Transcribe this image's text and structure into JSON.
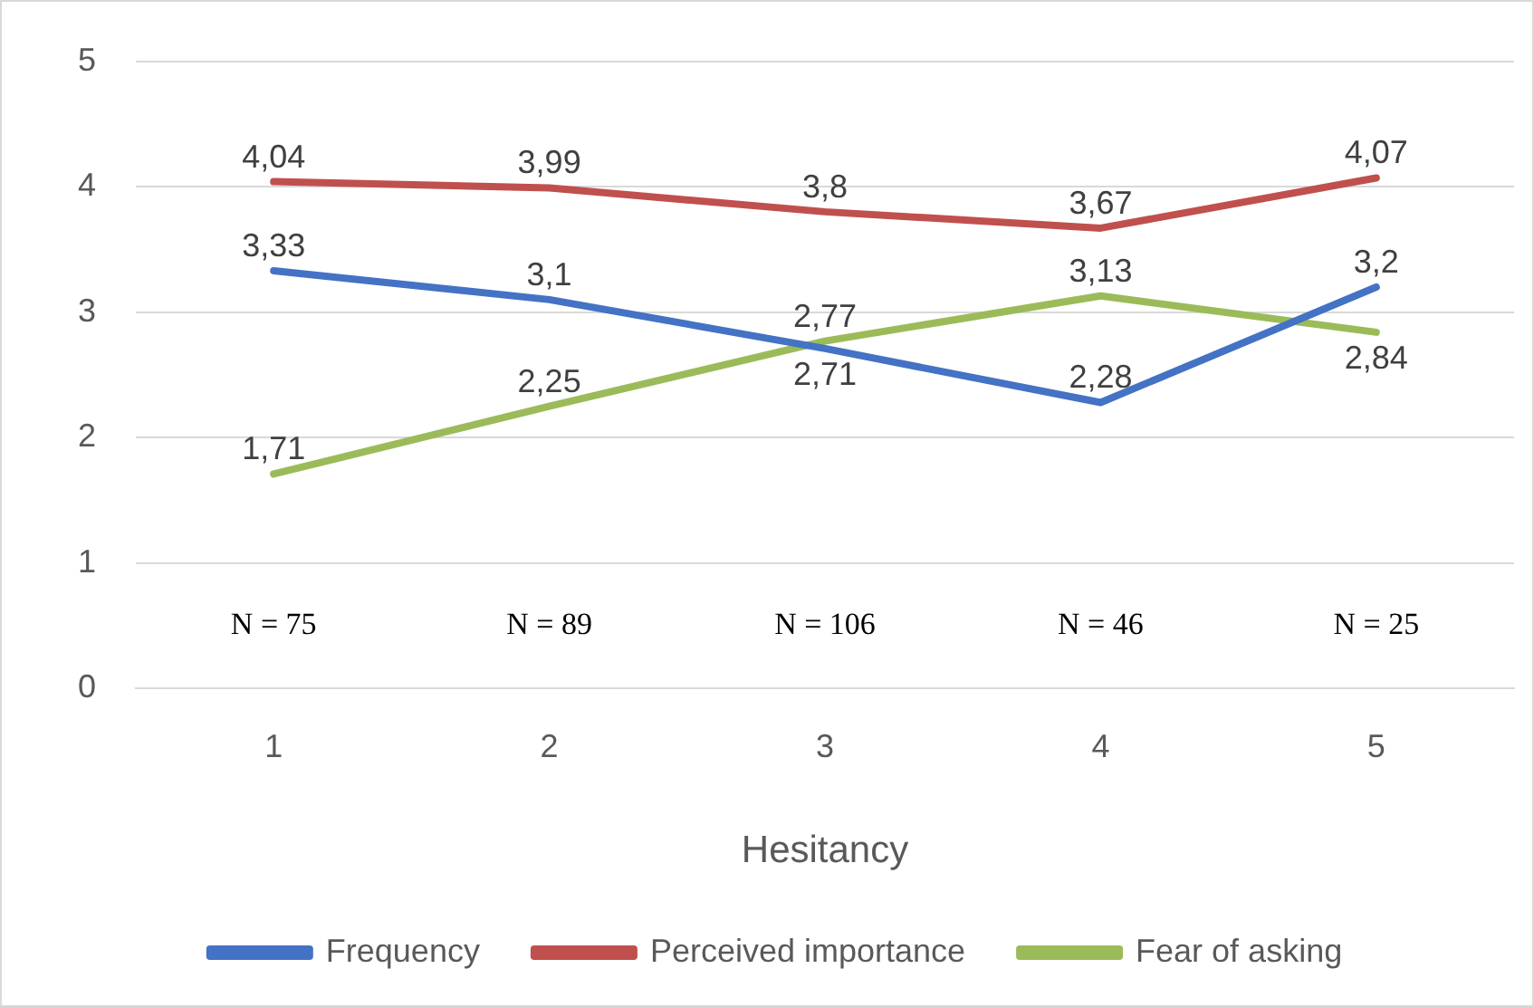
{
  "chart_data": {
    "type": "line",
    "xlabel": "Hesitancy",
    "categories": [
      "1",
      "2",
      "3",
      "4",
      "5"
    ],
    "series": [
      {
        "name": "Frequency",
        "color": "#4472c4",
        "values": [
          3.33,
          3.1,
          2.71,
          2.28,
          3.2
        ],
        "value_labels": [
          "3,33",
          "3,1",
          "2,71",
          "2,28",
          "3,2"
        ]
      },
      {
        "name": "Perceived importance",
        "color": "#c0504d",
        "values": [
          4.04,
          3.99,
          3.8,
          3.67,
          4.07
        ],
        "value_labels": [
          "4,04",
          "3,99",
          "3,8",
          "3,67",
          "4,07"
        ]
      },
      {
        "name": "Fear of asking",
        "color": "#9bbb59",
        "values": [
          1.71,
          2.25,
          2.77,
          3.13,
          2.84
        ],
        "value_labels": [
          "1,71",
          "2,25",
          "2,77",
          "3,13",
          "2,84"
        ]
      }
    ],
    "ylim": [
      0,
      5
    ],
    "yticks": [
      0,
      1,
      2,
      3,
      4,
      5
    ],
    "grid": "y",
    "legend": "bottom",
    "marker": "none",
    "line_style": "solid",
    "annotations": [
      "N = 75",
      "N = 89",
      "N = 106",
      "N = 46",
      "N = 25"
    ]
  }
}
